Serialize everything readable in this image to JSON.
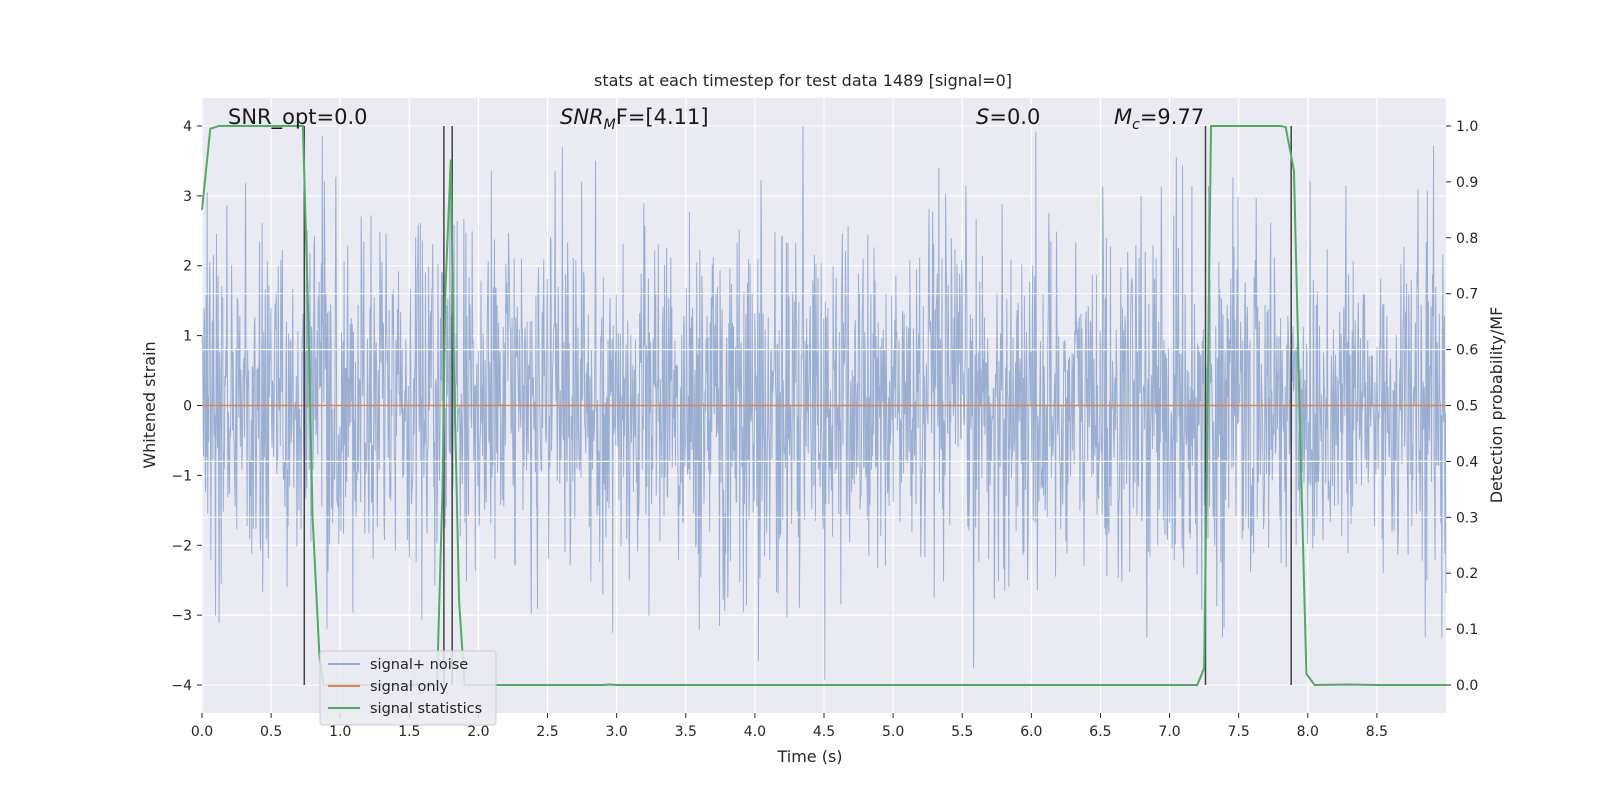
{
  "chart_data": {
    "type": "line",
    "title": "stats at each timestep for test data 1489 [signal=0]",
    "xlabel": "Time (s)",
    "ylabel": "Whitened strain",
    "ylabel_right": "Detection probability/MF",
    "xlim": [
      0.0,
      9.0
    ],
    "ylim": [
      -4.4,
      4.4
    ],
    "ylim_right": [
      -0.05,
      1.05
    ],
    "x_ticks": [
      0.0,
      0.5,
      1.0,
      1.5,
      2.0,
      2.5,
      3.0,
      3.5,
      4.0,
      4.5,
      5.0,
      5.5,
      6.0,
      6.5,
      7.0,
      7.5,
      8.0,
      8.5
    ],
    "x_tick_labels": [
      "0.0",
      "0.5",
      "1.0",
      "1.5",
      "2.0",
      "2.5",
      "3.0",
      "3.5",
      "4.0",
      "4.5",
      "5.0",
      "5.5",
      "6.0",
      "6.5",
      "7.0",
      "7.5",
      "8.0",
      "8.5"
    ],
    "y_ticks": [
      4,
      3,
      2,
      1,
      0,
      -1,
      -2,
      -3,
      -4
    ],
    "y_tick_labels": [
      "4",
      "3",
      "2",
      "1",
      "0",
      "−1",
      "−2",
      "−3",
      "−4"
    ],
    "y2_ticks": [
      1.0,
      0.9,
      0.8,
      0.7,
      0.6,
      0.5,
      0.4,
      0.3,
      0.2,
      0.1,
      0.0
    ],
    "y2_tick_labels": [
      "1.0",
      "0.9",
      "0.8",
      "0.7",
      "0.6",
      "0.5",
      "0.4",
      "0.3",
      "0.2",
      "0.1",
      "0.0"
    ],
    "grid": true,
    "annotations": {
      "snr_opt": "SNR_opt=0.0",
      "snr_mf_prefix": "SNR",
      "snr_mf_sub": "M",
      "snr_mf_suffix": "F=[4.11]",
      "s_var": "S",
      "s_value": "=0.0",
      "mc_var": "M",
      "mc_sub": "c",
      "mc_value": "=9.77"
    },
    "legend": {
      "placement": "lower-left",
      "entries": [
        "signal+ noise",
        "signal only",
        "signal statistics"
      ]
    },
    "series": [
      {
        "name": "signal+ noise",
        "color": "#4c72b0",
        "description": "whitened noisy strain, roughly gaussian noise within about -4 to 4"
      },
      {
        "name": "signal only",
        "color": "#dd8452",
        "x": [
          0.0,
          9.0
        ],
        "y": [
          0.0,
          0.0
        ]
      },
      {
        "name": "signal statistics",
        "color": "#55a868",
        "axis": "right",
        "x": [
          0.0,
          0.06,
          0.12,
          0.3,
          0.5,
          0.65,
          0.73,
          0.77,
          0.8,
          0.85,
          0.88,
          0.92,
          1.0,
          1.2,
          1.5,
          1.7,
          1.74,
          1.76,
          1.8,
          1.82,
          1.86,
          1.9,
          2.0,
          2.5,
          2.9,
          2.95,
          3.0,
          3.5,
          4.0,
          5.0,
          6.0,
          7.0,
          7.2,
          7.25,
          7.27,
          7.3,
          7.35,
          7.5,
          7.7,
          7.8,
          7.84,
          7.9,
          7.95,
          7.99,
          8.05,
          8.3,
          8.5,
          9.0
        ],
        "y": [
          0.85,
          0.995,
          1.0,
          1.0,
          1.0,
          1.0,
          1.0,
          0.65,
          0.3,
          0.05,
          0.0,
          0.0,
          0.0,
          0.0,
          0.0,
          0.0,
          0.35,
          0.7,
          0.94,
          0.6,
          0.15,
          0.0,
          0.0,
          0.0,
          0.0,
          0.001,
          0.0,
          0.0,
          0.0,
          0.0,
          0.0,
          0.0,
          0.0,
          0.03,
          0.4,
          1.0,
          1.0,
          1.0,
          1.0,
          1.0,
          0.998,
          0.92,
          0.4,
          0.02,
          0.0,
          0.001,
          0.0,
          0.0
        ]
      }
    ],
    "vertical_markers": [
      0.74,
      1.75,
      1.81,
      7.26,
      7.88
    ],
    "horizontal_reference_lines_right": [
      0.7,
      0.6,
      0.4,
      0.3
    ],
    "colors": {
      "background": "#eaeaf2",
      "grid": "#ffffff",
      "marker": "#444444"
    }
  }
}
